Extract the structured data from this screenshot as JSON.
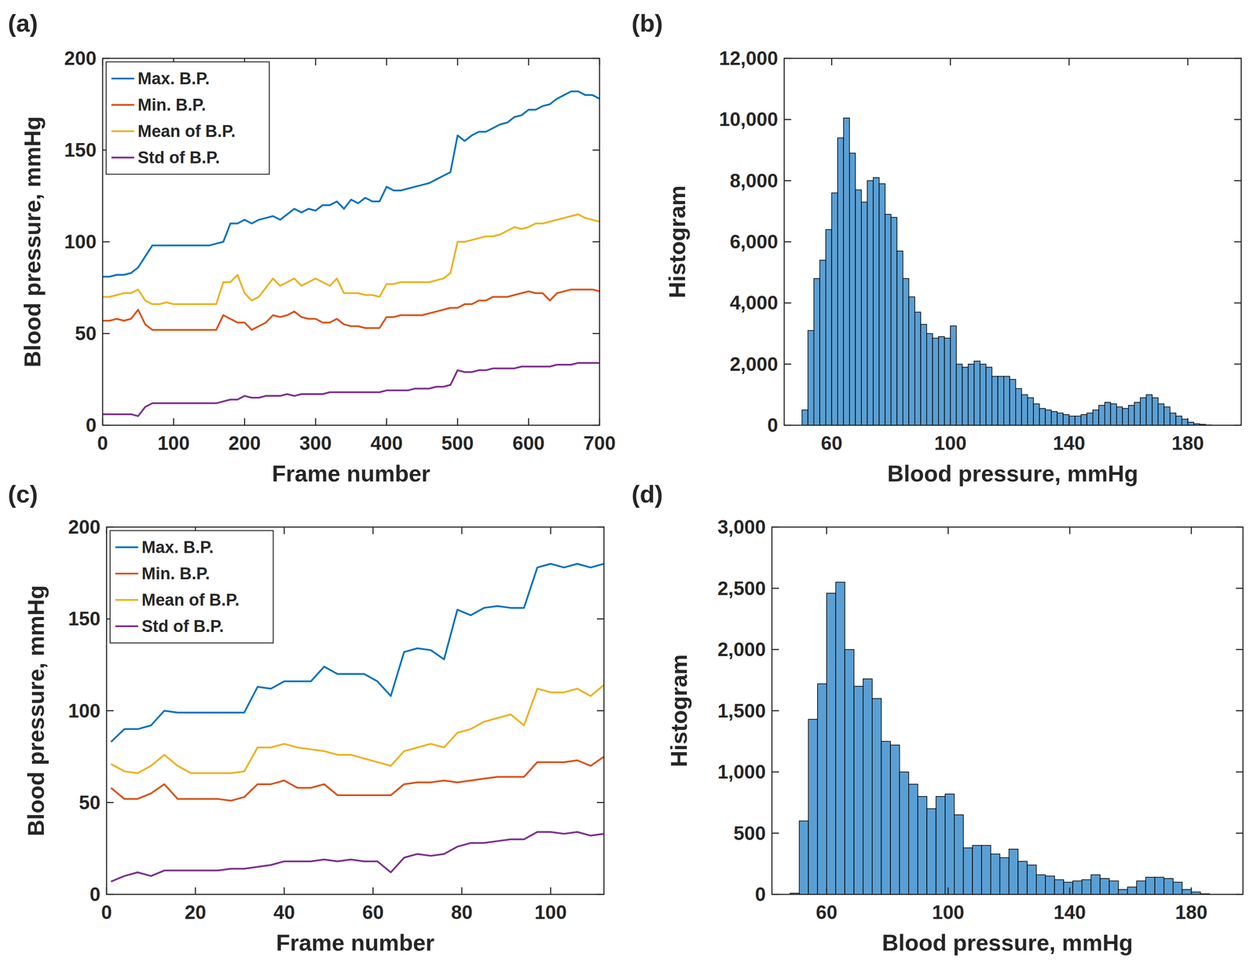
{
  "chart_data": [
    {
      "type": "line",
      "panel_label": "(a)",
      "x_label": "Frame number",
      "y_label": "Blood pressure, mmHg",
      "xlim": [
        0,
        700
      ],
      "ylim": [
        0,
        200
      ],
      "xticks": [
        0,
        100,
        200,
        300,
        400,
        500,
        600,
        700
      ],
      "yticks": [
        0,
        50,
        100,
        150,
        200
      ],
      "legend": "upper left",
      "x": [
        0,
        10,
        20,
        30,
        40,
        50,
        60,
        70,
        80,
        90,
        100,
        110,
        120,
        130,
        140,
        150,
        160,
        170,
        180,
        190,
        200,
        210,
        220,
        230,
        240,
        250,
        260,
        270,
        280,
        290,
        300,
        310,
        320,
        330,
        340,
        350,
        360,
        370,
        380,
        390,
        400,
        410,
        420,
        430,
        440,
        450,
        460,
        470,
        480,
        490,
        500,
        510,
        520,
        530,
        540,
        550,
        560,
        570,
        580,
        590,
        600,
        610,
        620,
        630,
        640,
        650,
        660,
        670,
        680,
        690,
        700
      ],
      "series": [
        {
          "name": "Max. B.P.",
          "color": "#0072bd",
          "values": [
            81,
            81,
            82,
            82,
            83,
            86,
            92,
            98,
            98,
            98,
            98,
            98,
            98,
            98,
            98,
            98,
            99,
            100,
            110,
            110,
            112,
            110,
            112,
            113,
            114,
            112,
            115,
            118,
            116,
            118,
            117,
            120,
            120,
            122,
            118,
            123,
            121,
            124,
            122,
            122,
            130,
            128,
            128,
            129,
            130,
            131,
            132,
            134,
            136,
            138,
            158,
            155,
            158,
            160,
            160,
            162,
            164,
            165,
            168,
            169,
            172,
            172,
            174,
            175,
            178,
            180,
            182,
            182,
            180,
            180,
            178
          ]
        },
        {
          "name": "Min. B.P.",
          "color": "#d95319",
          "values": [
            57,
            57,
            58,
            57,
            58,
            63,
            55,
            52,
            52,
            52,
            52,
            52,
            52,
            52,
            52,
            52,
            52,
            60,
            58,
            56,
            56,
            52,
            54,
            56,
            60,
            59,
            60,
            62,
            59,
            58,
            58,
            56,
            56,
            58,
            55,
            54,
            54,
            53,
            53,
            53,
            59,
            59,
            60,
            60,
            60,
            60,
            61,
            62,
            63,
            64,
            64,
            66,
            66,
            68,
            68,
            70,
            70,
            70,
            71,
            72,
            73,
            72,
            72,
            68,
            72,
            73,
            74,
            74,
            74,
            74,
            73
          ]
        },
        {
          "name": "Mean of B.P.",
          "color": "#edb120",
          "values": [
            70,
            70,
            71,
            72,
            72,
            74,
            68,
            66,
            66,
            67,
            66,
            66,
            66,
            66,
            66,
            66,
            66,
            78,
            78,
            82,
            72,
            68,
            70,
            75,
            80,
            76,
            78,
            80,
            76,
            78,
            80,
            78,
            76,
            80,
            72,
            72,
            72,
            71,
            71,
            70,
            77,
            77,
            78,
            78,
            78,
            78,
            78,
            79,
            80,
            83,
            100,
            100,
            101,
            102,
            103,
            103,
            104,
            106,
            108,
            107,
            108,
            110,
            110,
            111,
            112,
            113,
            114,
            115,
            113,
            112,
            111
          ]
        },
        {
          "name": "Std of B.P.",
          "color": "#7e2f8e",
          "values": [
            6,
            6,
            6,
            6,
            6,
            5,
            10,
            12,
            12,
            12,
            12,
            12,
            12,
            12,
            12,
            12,
            12,
            13,
            14,
            14,
            16,
            15,
            15,
            16,
            16,
            16,
            17,
            16,
            17,
            17,
            17,
            17,
            18,
            18,
            18,
            18,
            18,
            18,
            18,
            18,
            19,
            19,
            19,
            19,
            20,
            20,
            20,
            21,
            21,
            22,
            30,
            29,
            29,
            30,
            30,
            31,
            31,
            31,
            31,
            32,
            32,
            32,
            32,
            32,
            33,
            33,
            33,
            34,
            34,
            34,
            34
          ]
        }
      ]
    },
    {
      "type": "histogram",
      "panel_label": "(b)",
      "x_label": "Blood pressure, mmHg",
      "y_label": "Histogram",
      "color": "#5a9fd4",
      "xlim": [
        44,
        198
      ],
      "ylim": [
        0,
        12000
      ],
      "xticks": [
        60,
        100,
        140,
        180
      ],
      "yticks": [
        0,
        {
          "value": 2000,
          "label": "2,000"
        },
        {
          "value": 4000,
          "label": "4,000"
        },
        {
          "value": 6000,
          "label": "6,000"
        },
        {
          "value": 8000,
          "label": "8,000"
        },
        {
          "value": 10000,
          "label": "10,000"
        },
        {
          "value": 12000,
          "label": "12,000"
        }
      ],
      "bins": [
        50,
        52,
        54,
        56,
        58,
        60,
        62,
        64,
        66,
        68,
        70,
        72,
        74,
        76,
        78,
        80,
        82,
        84,
        86,
        88,
        90,
        92,
        94,
        96,
        98,
        100,
        102,
        104,
        106,
        108,
        110,
        112,
        114,
        116,
        118,
        120,
        122,
        124,
        126,
        128,
        130,
        132,
        134,
        136,
        138,
        140,
        142,
        144,
        146,
        148,
        150,
        152,
        154,
        156,
        158,
        160,
        162,
        164,
        166,
        168,
        170,
        172,
        174,
        176,
        178,
        180,
        182,
        184,
        186,
        188
      ],
      "values": [
        500,
        3100,
        4800,
        5400,
        6400,
        7600,
        9400,
        10050,
        8900,
        7700,
        7300,
        8000,
        8100,
        7900,
        6900,
        6800,
        5700,
        4800,
        4200,
        3700,
        3300,
        3000,
        2850,
        2900,
        2850,
        3250,
        2000,
        1900,
        2000,
        2100,
        2000,
        1900,
        1600,
        1600,
        1600,
        1500,
        1200,
        1000,
        900,
        700,
        550,
        500,
        450,
        400,
        350,
        300,
        300,
        350,
        400,
        500,
        650,
        750,
        700,
        600,
        550,
        650,
        750,
        900,
        1000,
        900,
        700,
        600,
        400,
        300,
        200,
        100,
        50,
        30,
        10
      ]
    },
    {
      "type": "line",
      "panel_label": "(c)",
      "x_label": "Frame number",
      "y_label": "Blood pressure, mmHg",
      "xlim": [
        0,
        112
      ],
      "ylim": [
        0,
        200
      ],
      "xticks": [
        0,
        20,
        40,
        60,
        80,
        100
      ],
      "yticks": [
        0,
        50,
        100,
        150,
        200
      ],
      "legend": "upper left",
      "x": [
        1,
        4,
        7,
        10,
        13,
        16,
        19,
        22,
        25,
        28,
        31,
        34,
        37,
        40,
        43,
        46,
        49,
        52,
        55,
        58,
        61,
        64,
        67,
        70,
        73,
        76,
        79,
        82,
        85,
        88,
        91,
        94,
        97,
        100,
        103,
        106,
        109,
        112
      ],
      "series": [
        {
          "name": "Max. B.P.",
          "color": "#0072bd",
          "values": [
            83,
            90,
            90,
            92,
            100,
            99,
            99,
            99,
            99,
            99,
            99,
            113,
            112,
            116,
            116,
            116,
            124,
            120,
            120,
            120,
            116,
            108,
            132,
            134,
            133,
            128,
            155,
            152,
            156,
            157,
            156,
            156,
            178,
            180,
            178,
            180,
            178,
            180
          ]
        },
        {
          "name": "Min. B.P.",
          "color": "#d95319",
          "values": [
            58,
            52,
            52,
            55,
            60,
            52,
            52,
            52,
            52,
            51,
            53,
            60,
            60,
            62,
            58,
            58,
            60,
            54,
            54,
            54,
            54,
            54,
            60,
            61,
            61,
            62,
            61,
            62,
            63,
            64,
            64,
            64,
            72,
            72,
            72,
            73,
            70,
            75
          ]
        },
        {
          "name": "Mean of B.P.",
          "color": "#edb120",
          "values": [
            71,
            67,
            66,
            70,
            76,
            70,
            66,
            66,
            66,
            66,
            67,
            80,
            80,
            82,
            80,
            79,
            78,
            76,
            76,
            74,
            72,
            70,
            78,
            80,
            82,
            80,
            88,
            90,
            94,
            96,
            98,
            92,
            112,
            110,
            110,
            112,
            108,
            114
          ]
        },
        {
          "name": "Std of B.P.",
          "color": "#7e2f8e",
          "values": [
            7,
            10,
            12,
            10,
            13,
            13,
            13,
            13,
            13,
            14,
            14,
            15,
            16,
            18,
            18,
            18,
            19,
            18,
            19,
            18,
            18,
            12,
            20,
            22,
            21,
            22,
            26,
            28,
            28,
            29,
            30,
            30,
            34,
            34,
            33,
            34,
            32,
            33
          ]
        }
      ]
    },
    {
      "type": "histogram",
      "panel_label": "(d)",
      "x_label": "Blood pressure, mmHg",
      "y_label": "Histogram",
      "color": "#5a9fd4",
      "xlim": [
        42,
        197
      ],
      "ylim": [
        0,
        3000
      ],
      "xticks": [
        60,
        100,
        140,
        180
      ],
      "yticks": [
        0,
        500,
        {
          "value": 1000,
          "label": "1,000"
        },
        {
          "value": 1500,
          "label": "1,500"
        },
        {
          "value": 2000,
          "label": "2,000"
        },
        {
          "value": 2500,
          "label": "2,500"
        },
        {
          "value": 3000,
          "label": "3,000"
        }
      ],
      "bins": [
        48,
        51,
        54,
        57,
        60,
        63,
        66,
        69,
        72,
        75,
        78,
        81,
        84,
        87,
        90,
        93,
        96,
        99,
        102,
        105,
        108,
        111,
        114,
        117,
        120,
        123,
        126,
        129,
        132,
        135,
        138,
        141,
        144,
        147,
        150,
        153,
        156,
        159,
        162,
        165,
        168,
        171,
        174,
        177,
        180,
        183,
        186
      ],
      "values": [
        10,
        600,
        1430,
        1720,
        2460,
        2550,
        2000,
        1700,
        1760,
        1600,
        1250,
        1220,
        1000,
        900,
        800,
        700,
        800,
        820,
        650,
        380,
        400,
        400,
        330,
        300,
        370,
        270,
        240,
        160,
        150,
        120,
        100,
        110,
        120,
        160,
        130,
        110,
        40,
        60,
        110,
        140,
        140,
        130,
        100,
        40,
        20,
        5
      ]
    }
  ]
}
